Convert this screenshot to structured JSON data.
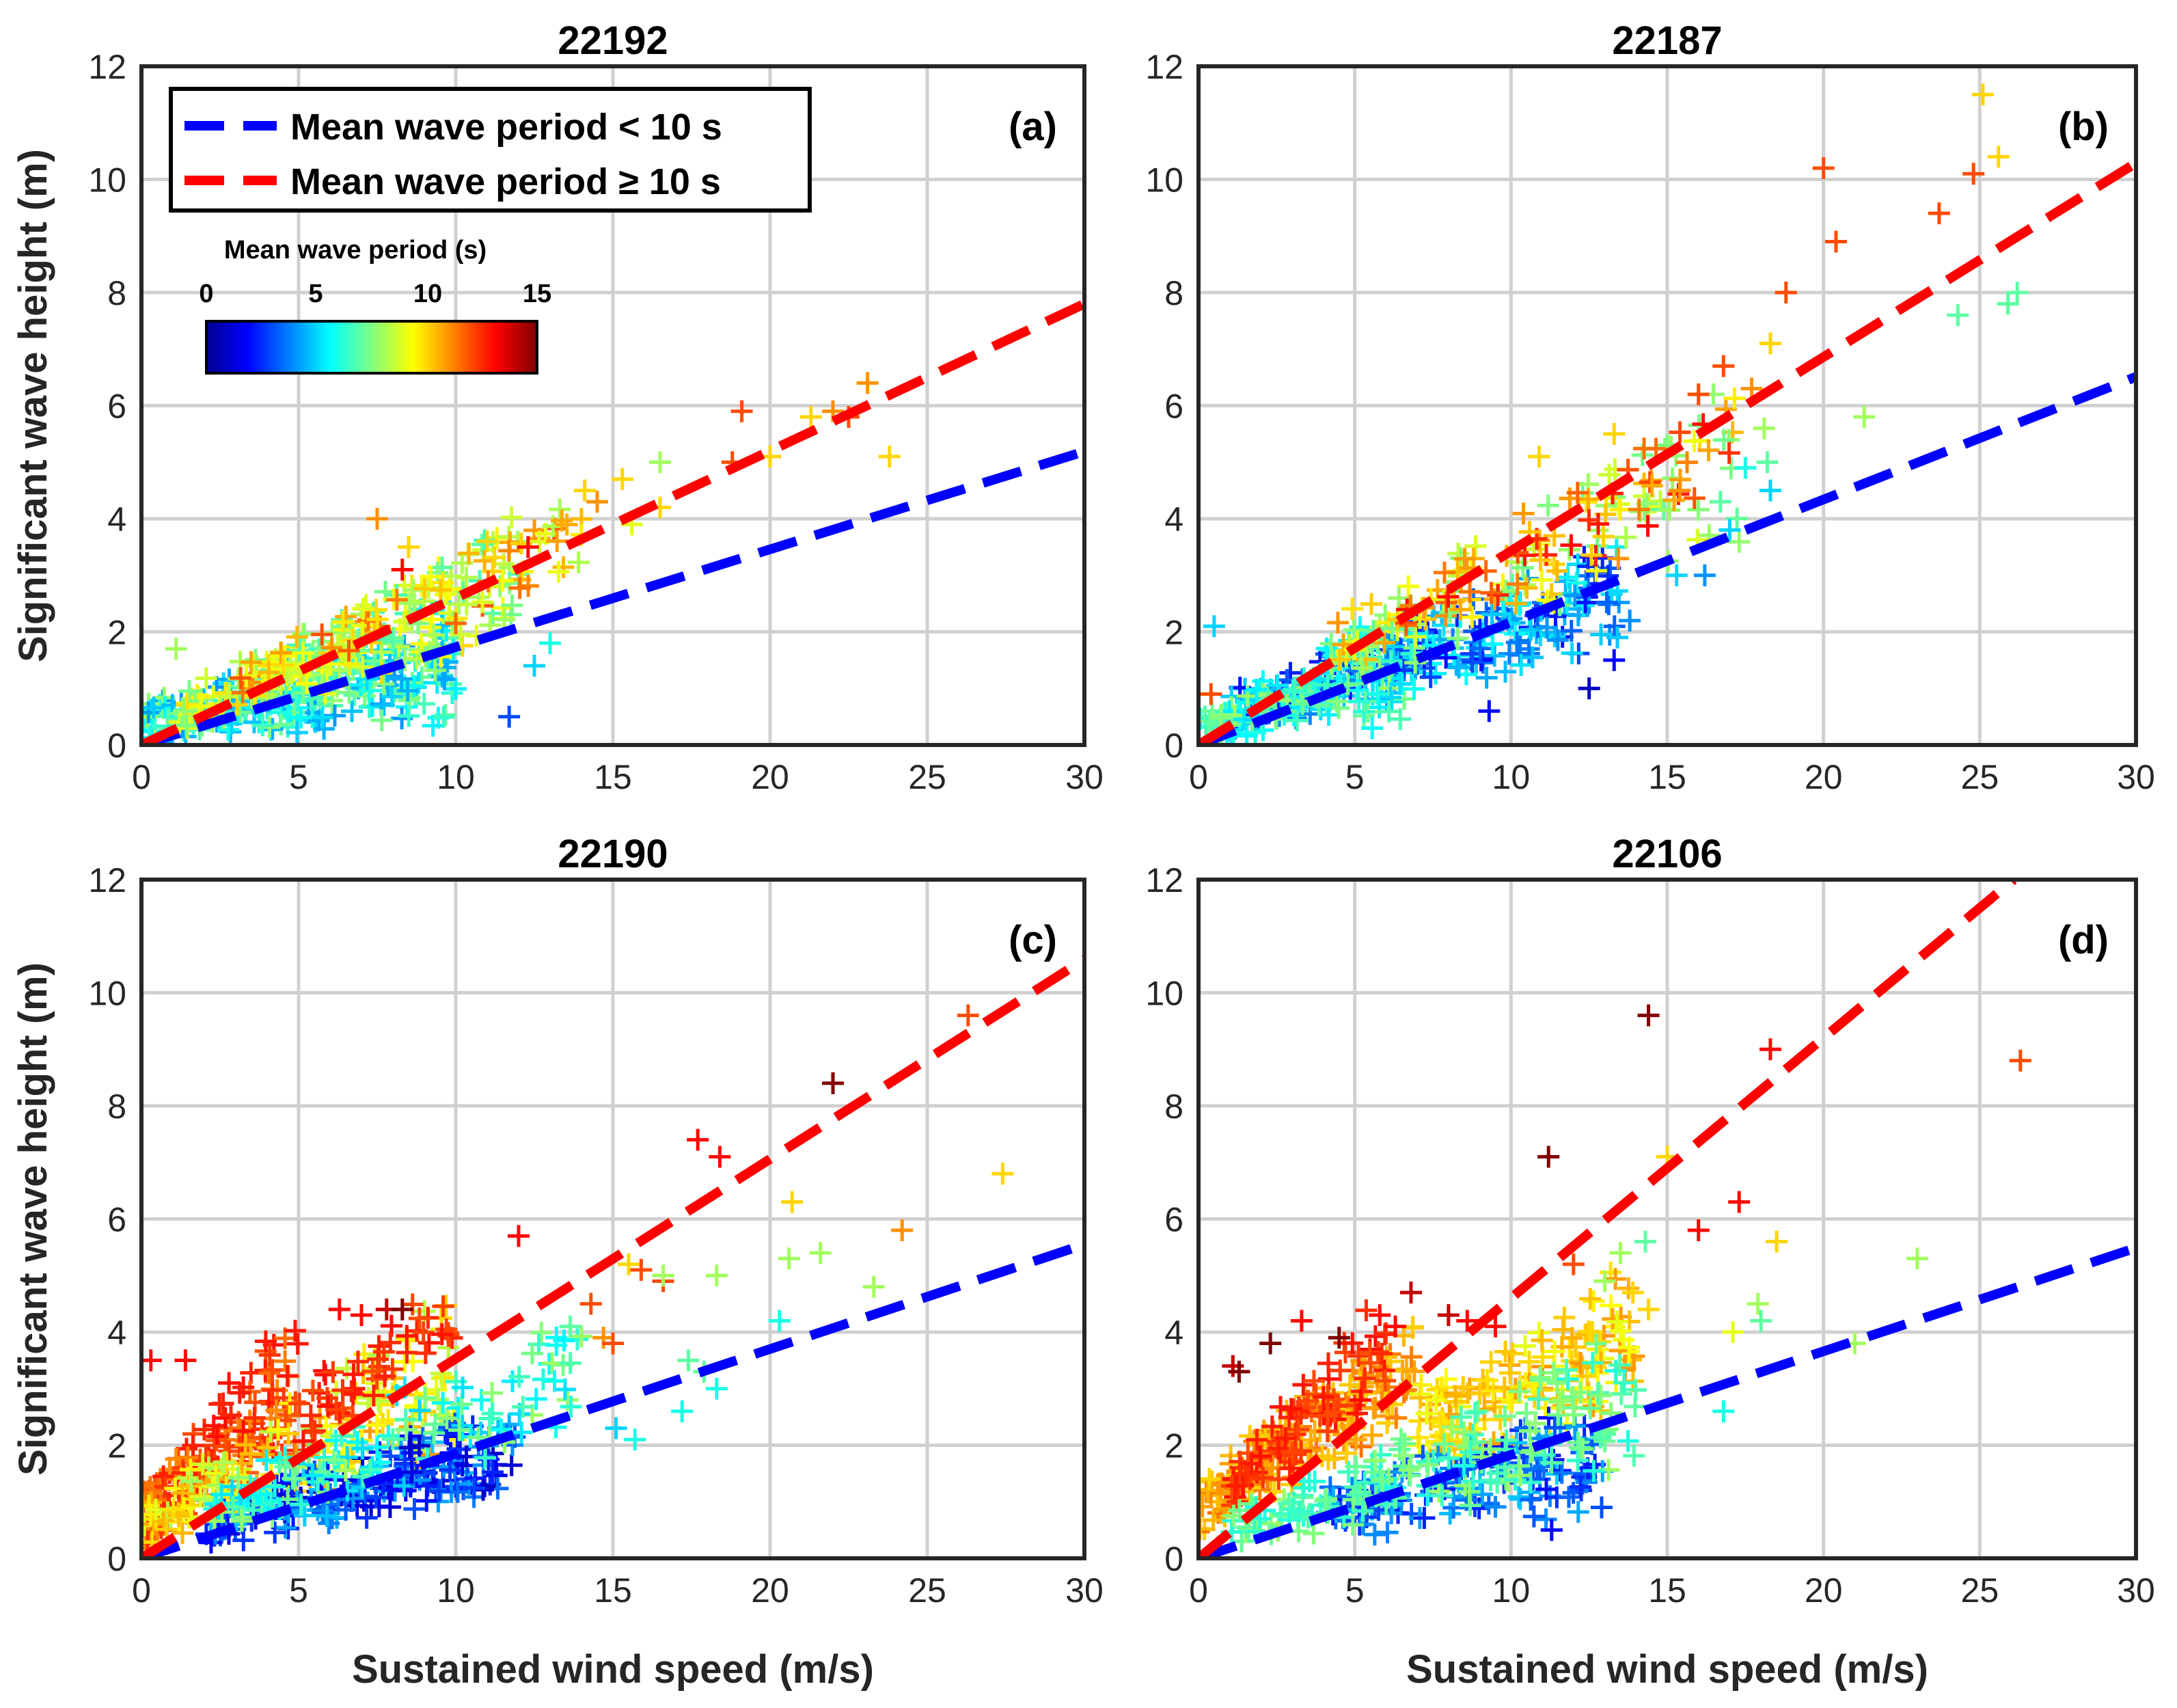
{
  "chart_data": {
    "type": "scatter",
    "shared": {
      "xlabel": "Sustained wind speed (m/s)",
      "ylabel": "Significant wave height (m)",
      "xlim": [
        0,
        30
      ],
      "ylim": [
        0,
        12
      ],
      "xticks": [
        "0",
        "5",
        "10",
        "15",
        "20",
        "25",
        "30"
      ],
      "yticks": [
        "0",
        "2",
        "4",
        "6",
        "8",
        "10",
        "12"
      ],
      "grid": true,
      "legend": {
        "placement": "top-left of panel (a)",
        "entries": [
          {
            "label": "Mean wave period < 10 s",
            "color": "#0000ff",
            "style": "dashed"
          },
          {
            "label": "Mean wave period ≥ 10 s",
            "color": "#ff0000",
            "style": "dashed"
          }
        ]
      },
      "colorbar": {
        "title": "Mean wave period (s)",
        "colormap": "jet",
        "range": [
          0,
          15
        ],
        "ticks": [
          "0",
          "5",
          "10",
          "15"
        ]
      }
    },
    "panels": [
      {
        "title": "22192",
        "label": "(a)",
        "fits": {
          "short_slope": 0.173,
          "long_slope": 0.26
        },
        "cluster_seed": 11,
        "clusters": [
          {
            "n": 260,
            "x": [
              0,
              10
            ],
            "k": [
              0.02,
              0.2
            ],
            "h": [
              0,
              0.7
            ],
            "p": [
              4,
              8
            ]
          },
          {
            "n": 190,
            "x": [
              1,
              12
            ],
            "k": [
              0.15,
              0.3
            ],
            "h": [
              0,
              0.6
            ],
            "p": [
              6.5,
              10
            ]
          },
          {
            "n": 80,
            "x": [
              3,
              14
            ],
            "k": [
              0.2,
              0.3
            ],
            "h": [
              0,
              0.5
            ],
            "p": [
              8,
              12
            ]
          }
        ],
        "points": [
          {
            "x": 7.5,
            "y": 4.0,
            "p": 11
          },
          {
            "x": 8.5,
            "y": 3.5,
            "p": 10
          },
          {
            "x": 8.3,
            "y": 3.1,
            "p": 13
          },
          {
            "x": 11.0,
            "y": 3.6,
            "p": 10
          },
          {
            "x": 12.3,
            "y": 3.5,
            "p": 13
          },
          {
            "x": 14.1,
            "y": 4.5,
            "p": 10
          },
          {
            "x": 14.5,
            "y": 4.3,
            "p": 11
          },
          {
            "x": 15.3,
            "y": 4.7,
            "p": 10
          },
          {
            "x": 15.6,
            "y": 3.9,
            "p": 9
          },
          {
            "x": 16.5,
            "y": 5.0,
            "p": 8
          },
          {
            "x": 16.5,
            "y": 4.2,
            "p": 10
          },
          {
            "x": 18.8,
            "y": 5.0,
            "p": 12
          },
          {
            "x": 19.1,
            "y": 5.9,
            "p": 12
          },
          {
            "x": 20.0,
            "y": 5.1,
            "p": 10
          },
          {
            "x": 21.3,
            "y": 5.8,
            "p": 10
          },
          {
            "x": 22.0,
            "y": 5.9,
            "p": 11
          },
          {
            "x": 22.5,
            "y": 5.8,
            "p": 12
          },
          {
            "x": 23.1,
            "y": 6.4,
            "p": 11
          },
          {
            "x": 23.8,
            "y": 5.1,
            "p": 10
          },
          {
            "x": 11.7,
            "y": 0.5,
            "p": 3
          },
          {
            "x": 1.1,
            "y": 1.7,
            "p": 8
          },
          {
            "x": 13.0,
            "y": 1.8,
            "p": 6
          },
          {
            "x": 12.5,
            "y": 1.4,
            "p": 5
          }
        ]
      },
      {
        "title": "22187",
        "label": "(b)",
        "fits": {
          "short_slope": 0.217,
          "long_slope": 0.343
        },
        "cluster_seed": 23,
        "clusters": [
          {
            "n": 260,
            "x": [
              1,
              13.5
            ],
            "k": [
              0.12,
              0.22
            ],
            "h": [
              0,
              0.8
            ],
            "p": [
              2,
              6
            ]
          },
          {
            "n": 140,
            "x": [
              0,
              7
            ],
            "k": [
              0.05,
              0.3
            ],
            "h": [
              0,
              0.6
            ],
            "p": [
              5,
              8
            ]
          },
          {
            "n": 130,
            "x": [
              4,
              17.5
            ],
            "k": [
              0.2,
              0.34
            ],
            "h": [
              0,
              0.8
            ],
            "p": [
              7,
              11
            ]
          },
          {
            "n": 50,
            "x": [
              6,
              17
            ],
            "k": [
              0.25,
              0.35
            ],
            "h": [
              0,
              0.6
            ],
            "p": [
              10,
              13
            ]
          }
        ],
        "points": [
          {
            "x": 0.5,
            "y": 2.1,
            "p": 5
          },
          {
            "x": 0.4,
            "y": 0.9,
            "p": 12
          },
          {
            "x": 9.3,
            "y": 0.6,
            "p": 2
          },
          {
            "x": 12.5,
            "y": 1.0,
            "p": 1
          },
          {
            "x": 13.3,
            "y": 1.5,
            "p": 2
          },
          {
            "x": 13.8,
            "y": 2.2,
            "p": 4
          },
          {
            "x": 15.3,
            "y": 3.0,
            "p": 5
          },
          {
            "x": 16.2,
            "y": 3.0,
            "p": 4
          },
          {
            "x": 18.1,
            "y": 5.6,
            "p": 8
          },
          {
            "x": 18.2,
            "y": 5.0,
            "p": 7
          },
          {
            "x": 16.8,
            "y": 6.7,
            "p": 12
          },
          {
            "x": 17.7,
            "y": 6.3,
            "p": 11
          },
          {
            "x": 16.0,
            "y": 6.2,
            "p": 12
          },
          {
            "x": 18.3,
            "y": 7.1,
            "p": 10
          },
          {
            "x": 18.8,
            "y": 8.0,
            "p": 12
          },
          {
            "x": 20.0,
            "y": 10.2,
            "p": 12
          },
          {
            "x": 20.4,
            "y": 8.9,
            "p": 12
          },
          {
            "x": 21.3,
            "y": 5.8,
            "p": 8
          },
          {
            "x": 23.7,
            "y": 9.4,
            "p": 12
          },
          {
            "x": 24.3,
            "y": 7.6,
            "p": 7
          },
          {
            "x": 24.8,
            "y": 10.1,
            "p": 12
          },
          {
            "x": 25.1,
            "y": 11.5,
            "p": 10
          },
          {
            "x": 25.6,
            "y": 10.4,
            "p": 10
          },
          {
            "x": 25.9,
            "y": 7.8,
            "p": 7
          },
          {
            "x": 26.2,
            "y": 8.0,
            "p": 7
          },
          {
            "x": 10.9,
            "y": 5.1,
            "p": 10
          },
          {
            "x": 13.3,
            "y": 5.5,
            "p": 10
          },
          {
            "x": 15.4,
            "y": 4.5,
            "p": 11
          },
          {
            "x": 17.5,
            "y": 4.9,
            "p": 6
          },
          {
            "x": 18.3,
            "y": 4.5,
            "p": 5
          },
          {
            "x": 16.7,
            "y": 4.3,
            "p": 7
          },
          {
            "x": 17.0,
            "y": 3.8,
            "p": 5
          }
        ]
      },
      {
        "title": "22190",
        "label": "(c)",
        "fits": {
          "short_slope": 0.185,
          "long_slope": 0.353
        },
        "cluster_seed": 37,
        "clusters": [
          {
            "n": 170,
            "x": [
              0,
              5
            ],
            "k": [
              0.35,
              0.7
            ],
            "h": [
              0,
              1.2
            ],
            "p": [
              11,
              13
            ]
          },
          {
            "n": 170,
            "x": [
              0,
              10
            ],
            "k": [
              0.15,
              0.4
            ],
            "h": [
              0,
              1.0
            ],
            "p": [
              8,
              11
            ]
          },
          {
            "n": 200,
            "x": [
              2,
              12
            ],
            "k": [
              0.08,
              0.2
            ],
            "h": [
              0,
              0.6
            ],
            "p": [
              1,
              5
            ]
          },
          {
            "n": 120,
            "x": [
              2,
              14
            ],
            "k": [
              0.15,
              0.3
            ],
            "h": [
              0,
              0.6
            ],
            "p": [
              5,
              8
            ]
          },
          {
            "n": 50,
            "x": [
              5,
              10
            ],
            "k": [
              0.35,
              0.45
            ],
            "h": [
              0,
              0.8
            ],
            "p": [
              12,
              13
            ]
          }
        ],
        "points": [
          {
            "x": 0.3,
            "y": 3.5,
            "p": 13
          },
          {
            "x": 1.4,
            "y": 3.5,
            "p": 13
          },
          {
            "x": 6.3,
            "y": 4.4,
            "p": 13
          },
          {
            "x": 7.8,
            "y": 4.4,
            "p": 14
          },
          {
            "x": 8.3,
            "y": 4.4,
            "p": 15
          },
          {
            "x": 7.0,
            "y": 4.3,
            "p": 13
          },
          {
            "x": 12.0,
            "y": 5.7,
            "p": 13
          },
          {
            "x": 14.3,
            "y": 4.5,
            "p": 12
          },
          {
            "x": 14.7,
            "y": 3.9,
            "p": 11
          },
          {
            "x": 15.0,
            "y": 3.8,
            "p": 12
          },
          {
            "x": 15.5,
            "y": 5.2,
            "p": 10
          },
          {
            "x": 15.9,
            "y": 5.1,
            "p": 12
          },
          {
            "x": 16.6,
            "y": 4.9,
            "p": 12
          },
          {
            "x": 16.6,
            "y": 5.0,
            "p": 8
          },
          {
            "x": 17.7,
            "y": 7.4,
            "p": 13
          },
          {
            "x": 18.4,
            "y": 7.1,
            "p": 13
          },
          {
            "x": 18.3,
            "y": 5.0,
            "p": 8
          },
          {
            "x": 20.3,
            "y": 4.2,
            "p": 6
          },
          {
            "x": 20.7,
            "y": 6.3,
            "p": 10
          },
          {
            "x": 20.6,
            "y": 5.3,
            "p": 8
          },
          {
            "x": 21.6,
            "y": 5.4,
            "p": 8
          },
          {
            "x": 22.0,
            "y": 8.4,
            "p": 15
          },
          {
            "x": 23.3,
            "y": 4.8,
            "p": 8
          },
          {
            "x": 24.2,
            "y": 5.8,
            "p": 11
          },
          {
            "x": 26.3,
            "y": 9.6,
            "p": 12
          },
          {
            "x": 27.4,
            "y": 6.8,
            "p": 10
          },
          {
            "x": 15.1,
            "y": 2.3,
            "p": 5
          },
          {
            "x": 15.7,
            "y": 2.1,
            "p": 6
          },
          {
            "x": 17.2,
            "y": 2.6,
            "p": 6
          },
          {
            "x": 17.4,
            "y": 3.5,
            "p": 7
          },
          {
            "x": 18.3,
            "y": 3.0,
            "p": 6
          },
          {
            "x": 17.9,
            "y": 3.3,
            "p": 7
          }
        ]
      },
      {
        "title": "22106",
        "label": "(d)",
        "fits": {
          "short_slope": 0.183,
          "long_slope": 0.46
        },
        "cluster_seed": 59,
        "clusters": [
          {
            "n": 170,
            "x": [
              0,
              7
            ],
            "k": [
              0.25,
              0.5
            ],
            "h": [
              0.4,
              1.4
            ],
            "p": [
              10,
              11.5
            ]
          },
          {
            "n": 90,
            "x": [
              1,
              6
            ],
            "k": [
              0.4,
              0.65
            ],
            "h": [
              0.3,
              1.0
            ],
            "p": [
              12,
              13
            ]
          },
          {
            "n": 150,
            "x": [
              7,
              14
            ],
            "k": [
              0.18,
              0.32
            ],
            "h": [
              0,
              1.0
            ],
            "p": [
              9,
              11
            ]
          },
          {
            "n": 150,
            "x": [
              4,
              13
            ],
            "k": [
              0.06,
              0.18
            ],
            "h": [
              0,
              0.6
            ],
            "p": [
              2,
              5
            ]
          },
          {
            "n": 170,
            "x": [
              1,
              14
            ],
            "k": [
              0.1,
              0.26
            ],
            "h": [
              0,
              0.6
            ],
            "p": [
              6,
              8
            ]
          }
        ],
        "points": [
          {
            "x": 1.1,
            "y": 3.4,
            "p": 14
          },
          {
            "x": 1.3,
            "y": 3.3,
            "p": 15
          },
          {
            "x": 2.3,
            "y": 3.8,
            "p": 15
          },
          {
            "x": 3.3,
            "y": 4.2,
            "p": 13
          },
          {
            "x": 4.5,
            "y": 3.9,
            "p": 15
          },
          {
            "x": 5.8,
            "y": 4.3,
            "p": 13
          },
          {
            "x": 6.3,
            "y": 4.1,
            "p": 13
          },
          {
            "x": 6.8,
            "y": 4.7,
            "p": 14
          },
          {
            "x": 8.0,
            "y": 4.3,
            "p": 14
          },
          {
            "x": 8.6,
            "y": 4.2,
            "p": 13
          },
          {
            "x": 9.5,
            "y": 4.1,
            "p": 13
          },
          {
            "x": 11.2,
            "y": 7.1,
            "p": 15
          },
          {
            "x": 12.0,
            "y": 5.2,
            "p": 12
          },
          {
            "x": 12.6,
            "y": 4.0,
            "p": 10
          },
          {
            "x": 14.4,
            "y": 9.6,
            "p": 15
          },
          {
            "x": 15.0,
            "y": 7.1,
            "p": 10
          },
          {
            "x": 16.0,
            "y": 5.8,
            "p": 13
          },
          {
            "x": 17.3,
            "y": 6.3,
            "p": 13
          },
          {
            "x": 18.3,
            "y": 9.0,
            "p": 13
          },
          {
            "x": 18.5,
            "y": 5.6,
            "p": 10
          },
          {
            "x": 14.3,
            "y": 5.6,
            "p": 7
          },
          {
            "x": 13.5,
            "y": 5.4,
            "p": 8
          },
          {
            "x": 13.9,
            "y": 4.7,
            "p": 10
          },
          {
            "x": 14.4,
            "y": 4.4,
            "p": 10
          },
          {
            "x": 13.0,
            "y": 4.9,
            "p": 8
          },
          {
            "x": 17.9,
            "y": 4.5,
            "p": 8
          },
          {
            "x": 17.1,
            "y": 4.0,
            "p": 9
          },
          {
            "x": 18.0,
            "y": 4.2,
            "p": 7
          },
          {
            "x": 16.8,
            "y": 2.6,
            "p": 6
          },
          {
            "x": 21.0,
            "y": 3.8,
            "p": 8
          },
          {
            "x": 23.0,
            "y": 5.3,
            "p": 8
          },
          {
            "x": 26.3,
            "y": 8.8,
            "p": 12
          },
          {
            "x": 11.3,
            "y": 0.5,
            "p": 2
          },
          {
            "x": 12.9,
            "y": 0.9,
            "p": 3
          }
        ]
      }
    ]
  }
}
